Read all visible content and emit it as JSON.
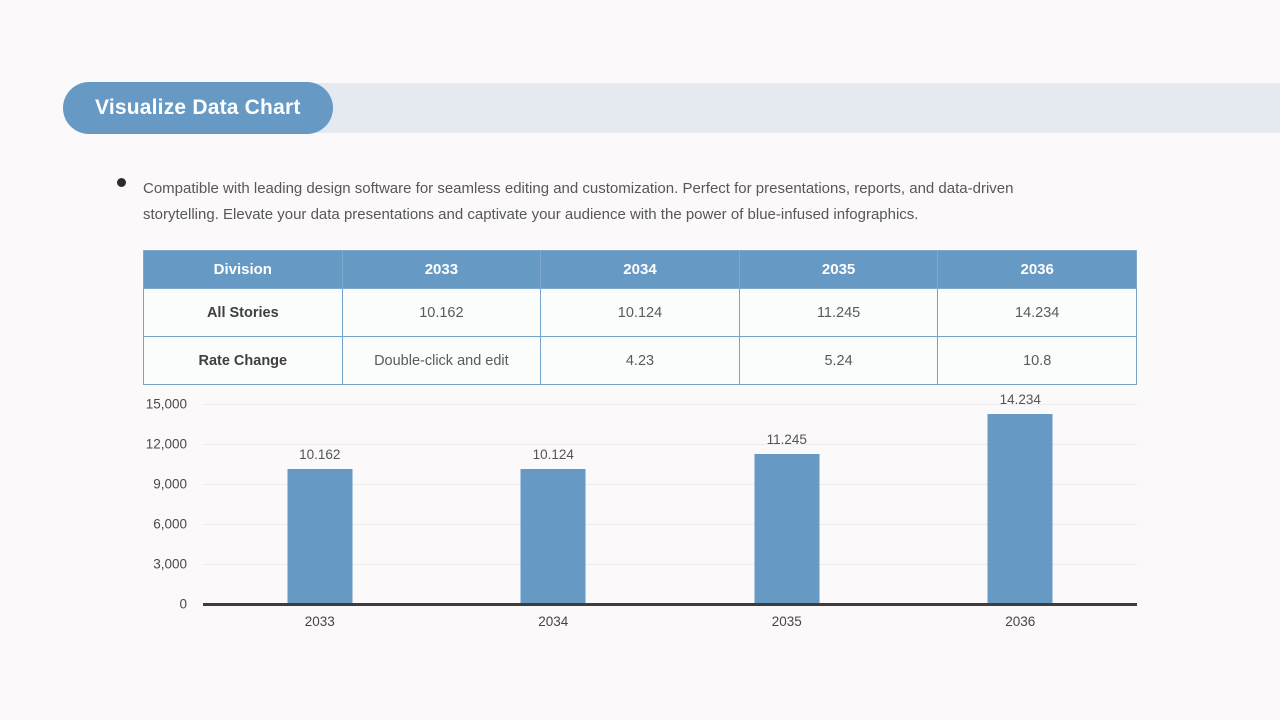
{
  "header": {
    "title": "Visualize Data Chart",
    "pill_color": "#6699c4",
    "strip_color": "#e4eaef"
  },
  "intro": {
    "text": "Compatible with leading design software for seamless editing and customization. Perfect for presentations, reports, and data-driven storytelling. Elevate your data presentations and captivate your audience with the power of blue-infused infographics."
  },
  "table": {
    "columns": [
      "Division",
      "2033",
      "2034",
      "2035",
      "2036"
    ],
    "rows": [
      {
        "label": "All Stories",
        "values": [
          "10.162",
          "10.124",
          "11.245",
          "14.234"
        ]
      },
      {
        "label": "Rate Change",
        "values": [
          "Double-click and edit",
          "4.23",
          "5.24",
          "10.8"
        ]
      }
    ]
  },
  "chart_data": {
    "type": "bar",
    "title": "",
    "xlabel": "",
    "ylabel": "",
    "categories": [
      "2033",
      "2034",
      "2035",
      "2036"
    ],
    "values": [
      10162,
      10124,
      11245,
      14234
    ],
    "bar_labels": [
      "10.162",
      "10.124",
      "11.245",
      "14.234"
    ],
    "ylim": [
      0,
      15000
    ],
    "yticks": [
      {
        "value": 15000,
        "label": "15,000"
      },
      {
        "value": 12000,
        "label": "12,000"
      },
      {
        "value": 9000,
        "label": "9,000"
      },
      {
        "value": 6000,
        "label": "6,000"
      },
      {
        "value": 3000,
        "label": "3,000"
      },
      {
        "value": 0,
        "label": "0"
      }
    ],
    "grid": true,
    "legend": false,
    "bar_color": "#6699c4"
  }
}
